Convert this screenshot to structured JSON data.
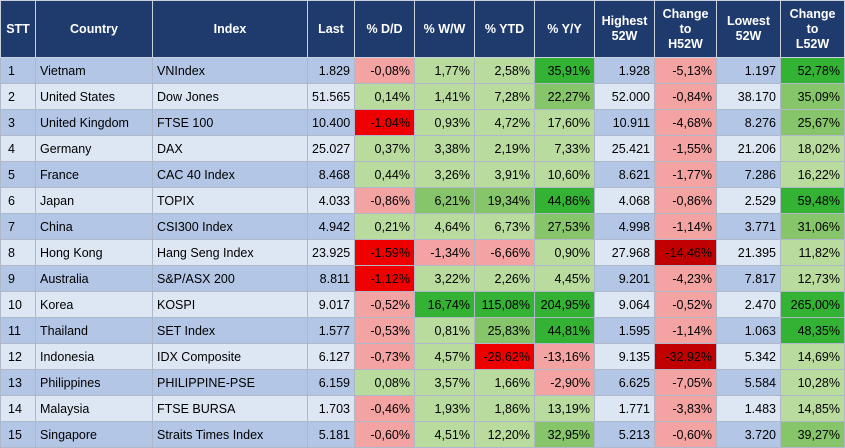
{
  "colors": {
    "header_bg": "#1f3b6e",
    "row_odd": "#b3c6e6",
    "row_even": "#dde6f3",
    "neg_bg": "#f4a3a3",
    "neg_strong_bg": "#ee0000",
    "neg_max_bg": "#c00000",
    "pos_bg": "#b9dc9e",
    "pos_mid_bg": "#86c56a",
    "pos_strong_bg": "#33b233"
  },
  "chart_data": {
    "type": "table",
    "columns": [
      "STT",
      "Country",
      "Index",
      "Last",
      "% D/D",
      "% W/W",
      "% YTD",
      "% Y/Y",
      "Highest 52W",
      "Change to H52W",
      "Lowest 52W",
      "Change to L52W"
    ],
    "header_lines": [
      [
        "STT"
      ],
      [
        "Country"
      ],
      [
        "Index"
      ],
      [
        "Last"
      ],
      [
        "% D/D"
      ],
      [
        "% W/W"
      ],
      [
        "% YTD"
      ],
      [
        "% Y/Y"
      ],
      [
        "Highest",
        "52W"
      ],
      [
        "Change",
        "to",
        "H52W"
      ],
      [
        "Lowest",
        "52W"
      ],
      [
        "Change to",
        "L52W"
      ]
    ],
    "rows": [
      [
        "1",
        "Vietnam",
        "VNIndex",
        "1.829",
        "-0,08%",
        "1,77%",
        "2,58%",
        "35,91%",
        "1.928",
        "-5,13%",
        "1.197",
        "52,78%"
      ],
      [
        "2",
        "United States",
        "Dow Jones",
        "51.565",
        "0,14%",
        "1,41%",
        "7,28%",
        "22,27%",
        "52.000",
        "-0,84%",
        "38.170",
        "35,09%"
      ],
      [
        "3",
        "United Kingdom",
        "FTSE 100",
        "10.400",
        "-1,04%",
        "0,93%",
        "4,72%",
        "17,60%",
        "10.911",
        "-4,68%",
        "8.276",
        "25,67%"
      ],
      [
        "4",
        "Germany",
        "DAX",
        "25.027",
        "0,37%",
        "3,38%",
        "2,19%",
        "7,33%",
        "25.421",
        "-1,55%",
        "21.206",
        "18,02%"
      ],
      [
        "5",
        "France",
        "CAC 40 Index",
        "8.468",
        "0,44%",
        "3,26%",
        "3,91%",
        "10,60%",
        "8.621",
        "-1,77%",
        "7.286",
        "16,22%"
      ],
      [
        "6",
        "Japan",
        "TOPIX",
        "4.033",
        "-0,86%",
        "6,21%",
        "19,34%",
        "44,86%",
        "4.068",
        "-0,86%",
        "2.529",
        "59,48%"
      ],
      [
        "7",
        "China",
        "CSI300 Index",
        "4.942",
        "0,21%",
        "4,64%",
        "6,73%",
        "27,53%",
        "4.998",
        "-1,14%",
        "3.771",
        "31,06%"
      ],
      [
        "8",
        "Hong Kong",
        "Hang Seng Index",
        "23.925",
        "-1,59%",
        "-1,34%",
        "-6,66%",
        "0,90%",
        "27.968",
        "-14,46%",
        "21.395",
        "11,82%"
      ],
      [
        "9",
        "Australia",
        "S&P/ASX 200",
        "8.811",
        "-1,12%",
        "3,22%",
        "2,26%",
        "4,45%",
        "9.201",
        "-4,23%",
        "7.817",
        "12,73%"
      ],
      [
        "10",
        "Korea",
        "KOSPI",
        "9.017",
        "-0,52%",
        "16,74%",
        "115,08%",
        "204,95%",
        "9.064",
        "-0,52%",
        "2.470",
        "265,00%"
      ],
      [
        "11",
        "Thailand",
        "SET Index",
        "1.577",
        "-0,53%",
        "0,81%",
        "25,83%",
        "44,81%",
        "1.595",
        "-1,14%",
        "1.063",
        "48,35%"
      ],
      [
        "12",
        "Indonesia",
        "IDX Composite",
        "6.127",
        "-0,73%",
        "4,57%",
        "-28,62%",
        "-13,16%",
        "9.135",
        "-32,92%",
        "5.342",
        "14,69%"
      ],
      [
        "13",
        "Philippines",
        "PHILIPPINE-PSE",
        "6.159",
        "0,08%",
        "3,57%",
        "1,66%",
        "-2,90%",
        "6.625",
        "-7,05%",
        "5.584",
        "10,28%"
      ],
      [
        "14",
        "Malaysia",
        "FTSE BURSA",
        "1.703",
        "-0,46%",
        "1,93%",
        "1,86%",
        "13,19%",
        "1.771",
        "-3,83%",
        "1.483",
        "14,85%"
      ],
      [
        "15",
        "Singapore",
        "Straits Times Index",
        "5.181",
        "-0,60%",
        "4,51%",
        "12,20%",
        "32,95%",
        "5.213",
        "-0,60%",
        "3.720",
        "39,27%"
      ]
    ],
    "cell_highlights": [
      [
        "",
        "",
        "",
        "",
        "neg",
        "pos",
        "pos",
        "pos_strong",
        "",
        "neg",
        "",
        "pos_strong"
      ],
      [
        "",
        "",
        "",
        "",
        "pos",
        "pos",
        "pos",
        "pos_mid",
        "",
        "neg",
        "",
        "pos_mid"
      ],
      [
        "",
        "",
        "",
        "",
        "neg_strong",
        "pos",
        "pos",
        "pos",
        "",
        "neg",
        "",
        "pos_mid"
      ],
      [
        "",
        "",
        "",
        "",
        "pos",
        "pos",
        "pos",
        "pos",
        "",
        "neg",
        "",
        "pos"
      ],
      [
        "",
        "",
        "",
        "",
        "pos",
        "pos",
        "pos",
        "pos",
        "",
        "neg",
        "",
        "pos"
      ],
      [
        "",
        "",
        "",
        "",
        "neg",
        "pos_mid",
        "pos_mid",
        "pos_strong",
        "",
        "neg",
        "",
        "pos_strong"
      ],
      [
        "",
        "",
        "",
        "",
        "pos",
        "pos",
        "pos",
        "pos_mid",
        "",
        "neg",
        "",
        "pos_mid"
      ],
      [
        "",
        "",
        "",
        "",
        "neg_strong",
        "neg",
        "neg",
        "pos",
        "",
        "neg_max",
        "",
        "pos"
      ],
      [
        "",
        "",
        "",
        "",
        "neg_strong",
        "pos",
        "pos",
        "pos",
        "",
        "neg",
        "",
        "pos"
      ],
      [
        "",
        "",
        "",
        "",
        "neg",
        "pos_strong",
        "pos_strong",
        "pos_strong",
        "",
        "neg",
        "",
        "pos_strong"
      ],
      [
        "",
        "",
        "",
        "",
        "neg",
        "pos",
        "pos_mid",
        "pos_strong",
        "",
        "neg",
        "",
        "pos_strong"
      ],
      [
        "",
        "",
        "",
        "",
        "neg",
        "pos",
        "neg_strong",
        "neg",
        "",
        "neg_max",
        "",
        "pos"
      ],
      [
        "",
        "",
        "",
        "",
        "pos",
        "pos",
        "pos",
        "neg",
        "",
        "neg",
        "",
        "pos"
      ],
      [
        "",
        "",
        "",
        "",
        "neg",
        "pos",
        "pos",
        "pos",
        "",
        "neg",
        "",
        "pos"
      ],
      [
        "",
        "",
        "",
        "",
        "neg",
        "pos",
        "pos",
        "pos_mid",
        "",
        "neg",
        "",
        "pos_mid"
      ]
    ]
  }
}
